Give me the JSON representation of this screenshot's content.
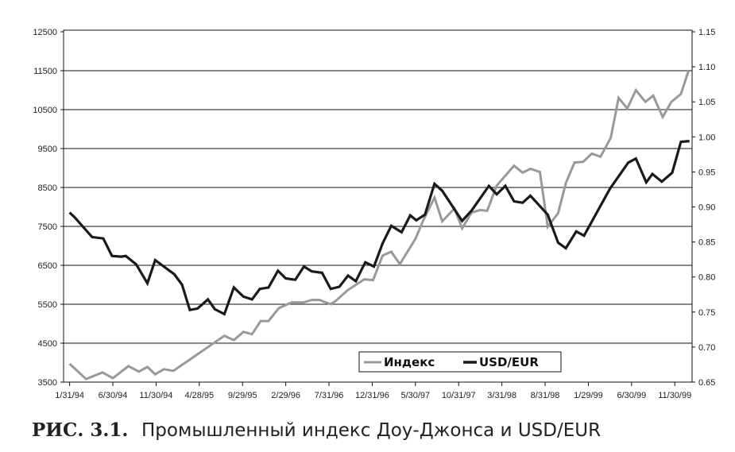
{
  "chart_data": {
    "type": "line",
    "title": "",
    "caption": {
      "number": "РИС. 3.1.",
      "text": "Промышленный индекс Доу-Джонса и USD/EUR"
    },
    "xlabel": "",
    "x_unit": "month index (0 = 1/31/94)",
    "xlim": [
      -0.7,
      72
    ],
    "x_ticks": [
      {
        "month": 0,
        "label": "1/31/94"
      },
      {
        "month": 5,
        "label": "6/30/94"
      },
      {
        "month": 10,
        "label": "11/30/94"
      },
      {
        "month": 15,
        "label": "4/28/95"
      },
      {
        "month": 20,
        "label": "9/29/95"
      },
      {
        "month": 25,
        "label": "2/29/96"
      },
      {
        "month": 30,
        "label": "7/31/96"
      },
      {
        "month": 35,
        "label": "12/31/96"
      },
      {
        "month": 40,
        "label": "5/30/97"
      },
      {
        "month": 45,
        "label": "10/31/97"
      },
      {
        "month": 50,
        "label": "3/31/98"
      },
      {
        "month": 55,
        "label": "8/31/98"
      },
      {
        "month": 60,
        "label": "1/29/99"
      },
      {
        "month": 65,
        "label": "6/30/99"
      },
      {
        "month": 70,
        "label": "11/30/99"
      }
    ],
    "y_left": {
      "lim": [
        3500,
        12500
      ],
      "ticks": [
        3500,
        4500,
        5500,
        6500,
        7500,
        8500,
        9500,
        10500,
        11500,
        12500
      ]
    },
    "y_right": {
      "lim": [
        0.65,
        1.15
      ],
      "ticks": [
        "0.65",
        "0.70",
        "0.75",
        "0.80",
        "0.85",
        "0.90",
        "0.95",
        "1.00",
        "1.05",
        "1.10",
        "1.15"
      ]
    },
    "grid": "horizontal",
    "legend": {
      "placement": "bottom-right",
      "entries": [
        "Индекс",
        "USD/EUR"
      ]
    },
    "series": [
      {
        "name": "Индекс",
        "axis": "left",
        "color": "#999999",
        "points": [
          [
            0,
            3970
          ],
          [
            1.9,
            3580
          ],
          [
            3.8,
            3750
          ],
          [
            5.0,
            3600
          ],
          [
            6.8,
            3910
          ],
          [
            8.0,
            3770
          ],
          [
            9.0,
            3890
          ],
          [
            9.9,
            3700
          ],
          [
            10.9,
            3830
          ],
          [
            12.0,
            3790
          ],
          [
            13.7,
            4050
          ],
          [
            17.9,
            4690
          ],
          [
            19.0,
            4580
          ],
          [
            20.1,
            4790
          ],
          [
            21.1,
            4730
          ],
          [
            22.1,
            5070
          ],
          [
            23.0,
            5070
          ],
          [
            24.2,
            5400
          ],
          [
            25.7,
            5550
          ],
          [
            27.1,
            5550
          ],
          [
            28.0,
            5610
          ],
          [
            28.9,
            5610
          ],
          [
            30.2,
            5500
          ],
          [
            30.8,
            5590
          ],
          [
            32.2,
            5870
          ],
          [
            34.1,
            6140
          ],
          [
            35.1,
            6120
          ],
          [
            36.2,
            6750
          ],
          [
            37.2,
            6850
          ],
          [
            38.2,
            6530
          ],
          [
            40.0,
            7180
          ],
          [
            40.9,
            7650
          ],
          [
            42.2,
            8240
          ],
          [
            43.1,
            7630
          ],
          [
            44.5,
            7960
          ],
          [
            45.4,
            7450
          ],
          [
            46.5,
            7860
          ],
          [
            47.5,
            7920
          ],
          [
            48.3,
            7900
          ],
          [
            49.4,
            8550
          ],
          [
            51.4,
            9060
          ],
          [
            52.4,
            8880
          ],
          [
            53.3,
            8980
          ],
          [
            54.4,
            8900
          ],
          [
            55.3,
            7490
          ],
          [
            56.5,
            7840
          ],
          [
            57.4,
            8610
          ],
          [
            58.4,
            9140
          ],
          [
            59.4,
            9160
          ],
          [
            60.4,
            9370
          ],
          [
            61.4,
            9290
          ],
          [
            62.6,
            9780
          ],
          [
            63.5,
            10800
          ],
          [
            64.5,
            10530
          ],
          [
            65.5,
            11000
          ],
          [
            66.6,
            10700
          ],
          [
            67.5,
            10860
          ],
          [
            68.6,
            10310
          ],
          [
            69.6,
            10700
          ],
          [
            70.7,
            10900
          ],
          [
            71.6,
            11500
          ]
        ]
      },
      {
        "name": "USD/EUR",
        "axis": "right",
        "color": "#1a1a1a",
        "points": [
          [
            0,
            0.892
          ],
          [
            0.6,
            0.885
          ],
          [
            2.6,
            0.857
          ],
          [
            3.9,
            0.855
          ],
          [
            4.9,
            0.83
          ],
          [
            6.0,
            0.829
          ],
          [
            6.5,
            0.83
          ],
          [
            7.7,
            0.818
          ],
          [
            9.0,
            0.791
          ],
          [
            9.9,
            0.824
          ],
          [
            11.0,
            0.814
          ],
          [
            12.1,
            0.804
          ],
          [
            13.0,
            0.789
          ],
          [
            13.9,
            0.753
          ],
          [
            14.8,
            0.755
          ],
          [
            16.0,
            0.768
          ],
          [
            16.8,
            0.754
          ],
          [
            17.9,
            0.747
          ],
          [
            19.0,
            0.785
          ],
          [
            20.1,
            0.772
          ],
          [
            21.1,
            0.768
          ],
          [
            22.0,
            0.783
          ],
          [
            23.0,
            0.785
          ],
          [
            24.1,
            0.809
          ],
          [
            25.0,
            0.798
          ],
          [
            26.1,
            0.796
          ],
          [
            27.1,
            0.815
          ],
          [
            28.0,
            0.808
          ],
          [
            29.2,
            0.806
          ],
          [
            30.2,
            0.783
          ],
          [
            31.2,
            0.786
          ],
          [
            32.2,
            0.802
          ],
          [
            33.1,
            0.794
          ],
          [
            34.2,
            0.821
          ],
          [
            35.2,
            0.815
          ],
          [
            36.2,
            0.848
          ],
          [
            37.2,
            0.873
          ],
          [
            38.4,
            0.864
          ],
          [
            39.4,
            0.888
          ],
          [
            40.1,
            0.881
          ],
          [
            41.1,
            0.889
          ],
          [
            42.2,
            0.933
          ],
          [
            43.1,
            0.923
          ],
          [
            45.4,
            0.88
          ],
          [
            46.5,
            0.895
          ],
          [
            48.5,
            0.93
          ],
          [
            49.4,
            0.918
          ],
          [
            50.4,
            0.93
          ],
          [
            51.4,
            0.908
          ],
          [
            52.4,
            0.906
          ],
          [
            53.3,
            0.916
          ],
          [
            55.3,
            0.889
          ],
          [
            56.5,
            0.849
          ],
          [
            57.4,
            0.841
          ],
          [
            58.6,
            0.865
          ],
          [
            59.5,
            0.859
          ],
          [
            62.5,
            0.926
          ],
          [
            64.6,
            0.963
          ],
          [
            65.5,
            0.969
          ],
          [
            66.7,
            0.935
          ],
          [
            67.4,
            0.947
          ],
          [
            68.5,
            0.936
          ],
          [
            69.7,
            0.949
          ],
          [
            70.7,
            0.993
          ],
          [
            71.7,
            0.994
          ]
        ]
      }
    ]
  }
}
